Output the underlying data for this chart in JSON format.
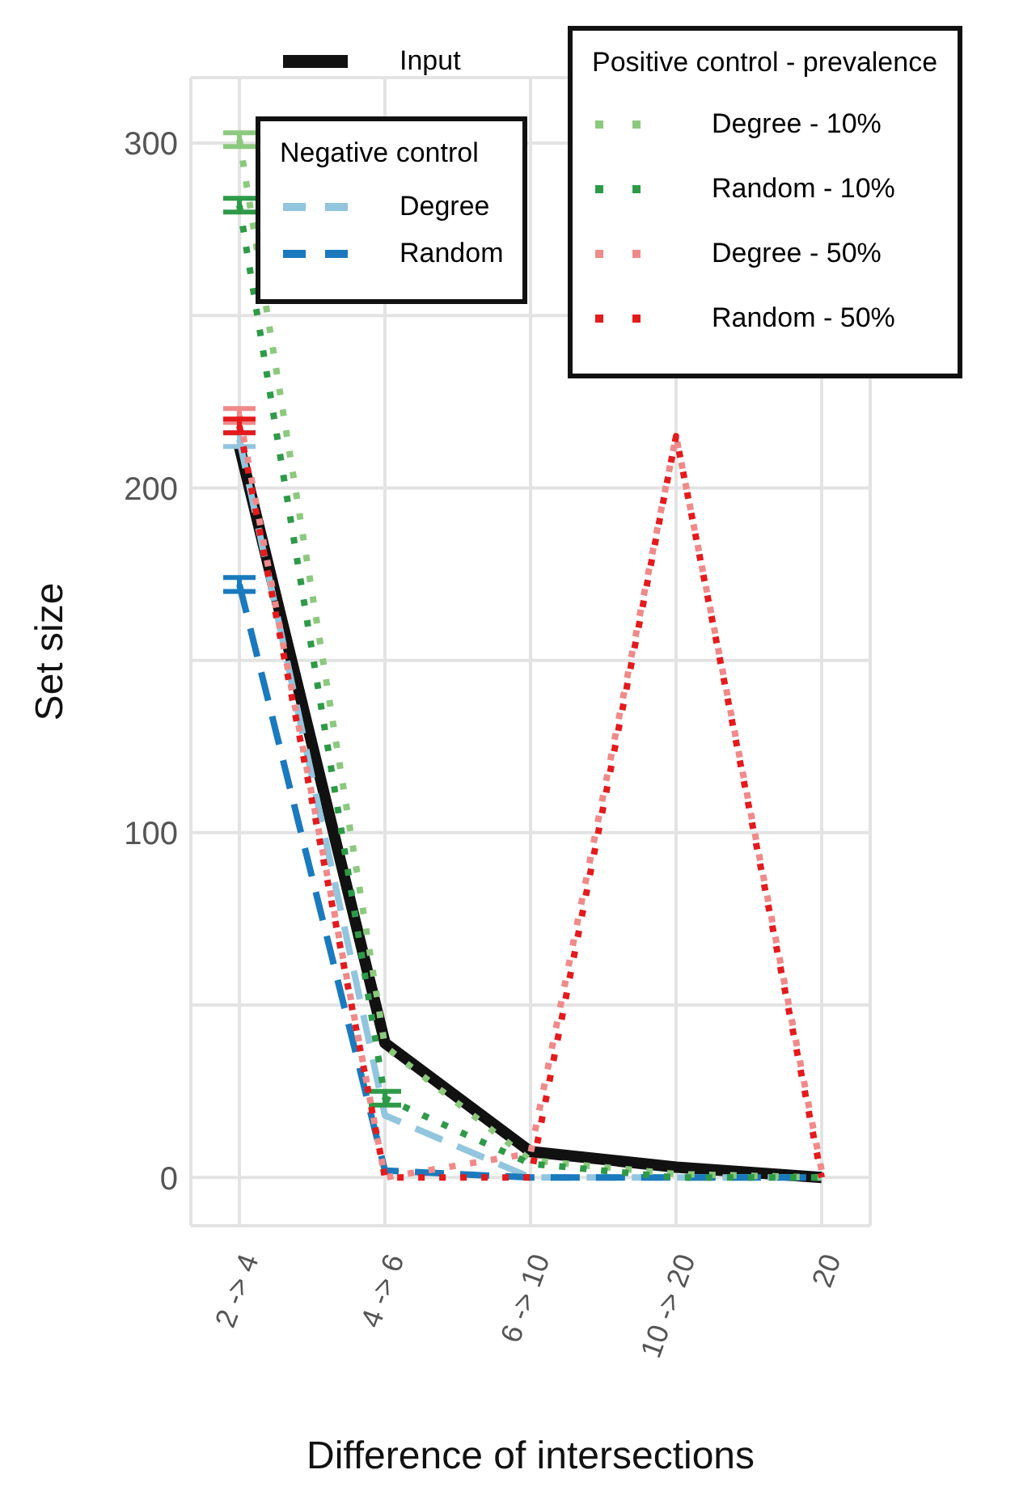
{
  "chart_data": {
    "type": "line",
    "xlabel": "Difference of intersections",
    "ylabel": "Set size",
    "legend_title": [
      "Negative control",
      "Positive control - prevalence"
    ],
    "categories": [
      "2 -> 4",
      "4 -> 6",
      "6 -> 10",
      "10 -> 20",
      "20"
    ],
    "ylim": [
      -14,
      319
    ],
    "yticks": [
      {
        "value": 0,
        "label": "0"
      },
      {
        "value": 50,
        "label": null
      },
      {
        "value": 100,
        "label": "100"
      },
      {
        "value": 150,
        "label": null
      },
      {
        "value": 200,
        "label": "200"
      },
      {
        "value": 250,
        "label": null
      },
      {
        "value": 300,
        "label": "300"
      }
    ],
    "grid": true,
    "legend": "top right",
    "marker": "none",
    "series": [
      {
        "name": "Input",
        "color": "#111111",
        "line_style": "solid",
        "values": [
          212,
          39,
          7.5,
          3,
          0
        ]
      },
      {
        "name": "Degree",
        "color": "#92c5de",
        "line_style": "dashed",
        "values": [
          214,
          18,
          0,
          0,
          0
        ],
        "errors": [
          2,
          null,
          null,
          null,
          null
        ]
      },
      {
        "name": "Random",
        "color": "#1a7abd",
        "line_style": "dashed",
        "values": [
          172,
          2,
          0,
          0,
          0
        ],
        "errors": [
          2,
          null,
          null,
          null,
          null
        ]
      },
      {
        "name": "Degree - 10%",
        "color": "#8cc97e",
        "line_style": "dotted",
        "values": [
          301,
          38,
          5,
          1,
          0
        ],
        "errors": [
          2,
          null,
          null,
          null,
          null
        ]
      },
      {
        "name": "Random - 10%",
        "color": "#2e9a48",
        "line_style": "dotted",
        "values": [
          282,
          23,
          4,
          0,
          0
        ],
        "errors": [
          2,
          2,
          null,
          null,
          null
        ]
      },
      {
        "name": "Degree - 50%",
        "color": "#f08a8a",
        "line_style": "dotted",
        "values": [
          221,
          0,
          7,
          215,
          2
        ],
        "errors": [
          2,
          null,
          null,
          null,
          null
        ]
      },
      {
        "name": "Random - 50%",
        "color": "#e41a1c",
        "line_style": "dotted",
        "values": [
          218,
          0,
          0,
          215,
          0
        ],
        "errors": [
          2,
          null,
          null,
          null,
          null
        ]
      }
    ]
  }
}
